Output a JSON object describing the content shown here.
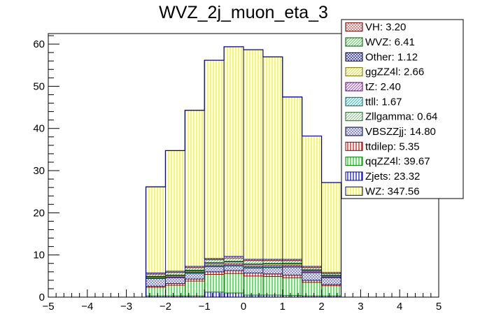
{
  "chart_data": {
    "type": "bar",
    "stacked": true,
    "title": "WVZ_2j_muon_eta_3",
    "xlabel": "",
    "ylabel": "",
    "xlim": [
      -5,
      5
    ],
    "ylim": [
      0,
      62.5
    ],
    "x_ticks": [
      -5,
      -4,
      -3,
      -2,
      -1,
      0,
      1,
      2,
      3,
      4,
      5
    ],
    "y_ticks": [
      0,
      10,
      20,
      30,
      40,
      50,
      60
    ],
    "bin_edges": [
      -2.5,
      -2,
      -1.5,
      -1,
      -0.5,
      0,
      0.5,
      1,
      1.5,
      2,
      2.5
    ],
    "legend_position": "top-right",
    "series": [
      {
        "name": "Zjets",
        "legend_text": "Zjets: 23.32",
        "fill": "#0000ff",
        "edge": "#00007a",
        "pattern": "vlines",
        "values": [
          0.3,
          0.3,
          0.3,
          1.2,
          1.0,
          0.5,
          0.5,
          0.4,
          0.3,
          0.3
        ]
      },
      {
        "name": "qqZZ4l",
        "legend_text": "qqZZ4l: 39.67",
        "fill": "#00d000",
        "edge": "#007000",
        "pattern": "vlines",
        "values": [
          2.0,
          2.5,
          3.5,
          4.2,
          4.6,
          4.5,
          4.4,
          4.2,
          3.2,
          2.4
        ]
      },
      {
        "name": "ttdilep",
        "legend_text": "ttdilep: 5.35",
        "fill": "#e00000",
        "edge": "#8b0000",
        "pattern": "vlines",
        "values": [
          0.3,
          0.4,
          0.5,
          0.6,
          0.7,
          0.7,
          0.6,
          0.6,
          0.5,
          0.3
        ]
      },
      {
        "name": "VBSZZjj",
        "legend_text": "VBSZZjj: 14.80",
        "fill": "#8080c0",
        "edge": "#000040",
        "pattern": "cross",
        "values": [
          1.8,
          1.4,
          1.3,
          1.2,
          1.1,
          1.2,
          1.5,
          1.9,
          1.8,
          1.6
        ]
      },
      {
        "name": "Zllgamma",
        "legend_text": "Zllgamma: 0.64",
        "fill": "#80c080",
        "edge": "#306030",
        "pattern": "dlines",
        "values": [
          0.05,
          0.05,
          0.1,
          0.07,
          0.07,
          0.07,
          0.07,
          0.06,
          0.05,
          0.05
        ]
      },
      {
        "name": "ttll",
        "legend_text": "ttll: 1.67",
        "fill": "#00d0d0",
        "edge": "#006060",
        "pattern": "dlines",
        "values": [
          0.1,
          0.1,
          0.2,
          0.2,
          0.2,
          0.2,
          0.2,
          0.2,
          0.15,
          0.12
        ]
      },
      {
        "name": "tZ",
        "legend_text": "tZ: 2.40",
        "fill": "#b040d0",
        "edge": "#500070",
        "pattern": "dlines",
        "values": [
          0.1,
          0.2,
          0.2,
          0.3,
          0.4,
          0.3,
          0.3,
          0.3,
          0.2,
          0.1
        ]
      },
      {
        "name": "ggZZ4l",
        "legend_text": "ggZZ4l: 2.66",
        "fill": "#e0e000",
        "edge": "#707000",
        "pattern": "dlines",
        "values": [
          0.2,
          0.2,
          0.2,
          0.3,
          0.3,
          0.3,
          0.3,
          0.3,
          0.2,
          0.2
        ]
      },
      {
        "name": "Other",
        "legend_text": "Other: 1.12",
        "fill": "#4040a0",
        "edge": "#000040",
        "pattern": "cross",
        "values": [
          0.1,
          0.1,
          0.1,
          0.1,
          0.1,
          0.1,
          0.1,
          0.1,
          0.1,
          0.1
        ]
      },
      {
        "name": "WVZ",
        "legend_text": "WVZ: 6.41",
        "fill": "#40d040",
        "edge": "#005000",
        "pattern": "dlines",
        "values": [
          0.5,
          0.6,
          0.6,
          0.7,
          0.8,
          0.8,
          0.7,
          0.6,
          0.5,
          0.4
        ]
      },
      {
        "name": "VH",
        "legend_text": "VH: 3.20",
        "fill": "#c08080",
        "edge": "#600000",
        "pattern": "cross",
        "values": [
          0.3,
          0.3,
          0.3,
          0.3,
          0.4,
          0.3,
          0.3,
          0.3,
          0.3,
          0.3
        ]
      },
      {
        "name": "WZ",
        "legend_text": "WZ: 347.56",
        "fill": "#f0f000",
        "edge": "#00008b",
        "pattern": "vlines",
        "values": [
          20.4,
          28.6,
          37.0,
          47.0,
          49.7,
          49.7,
          48.0,
          38.5,
          30.9,
          21.3
        ]
      }
    ],
    "legend_order": [
      "VH",
      "WVZ",
      "Other",
      "ggZZ4l",
      "tZ",
      "ttll",
      "Zllgamma",
      "VBSZZjj",
      "ttdilep",
      "qqZZ4l",
      "Zjets",
      "WZ"
    ]
  }
}
